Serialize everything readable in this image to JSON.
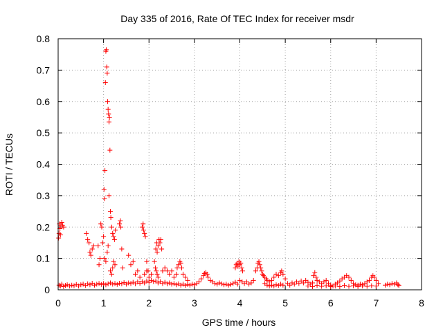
{
  "chart_data": {
    "type": "scatter",
    "title": "Day 335 of 2016, Rate Of TEC Index for receiver msdr",
    "xlabel": "GPS time / hours",
    "ylabel": "ROTI / TECUs",
    "xlim": [
      0,
      8
    ],
    "ylim": [
      0,
      0.8
    ],
    "x_ticks": [
      "0",
      "1",
      "2",
      "3",
      "4",
      "5",
      "6",
      "7",
      "8"
    ],
    "y_ticks": [
      "0",
      "0.1",
      "0.2",
      "0.3",
      "0.4",
      "0.5",
      "0.6",
      "0.7",
      "0.8"
    ],
    "grid": true,
    "marker": "+",
    "color": "#ff0000",
    "series": [
      {
        "name": "ROTI",
        "points": [
          [
            0.02,
            0.015
          ],
          [
            0.05,
            0.012
          ],
          [
            0.08,
            0.018
          ],
          [
            0.12,
            0.01
          ],
          [
            0.16,
            0.014
          ],
          [
            0.2,
            0.016
          ],
          [
            0.25,
            0.012
          ],
          [
            0.3,
            0.015
          ],
          [
            0.35,
            0.013
          ],
          [
            0.4,
            0.017
          ],
          [
            0.45,
            0.012
          ],
          [
            0.5,
            0.016
          ],
          [
            0.55,
            0.018
          ],
          [
            0.6,
            0.014
          ],
          [
            0.65,
            0.019
          ],
          [
            0.7,
            0.016
          ],
          [
            0.75,
            0.021
          ],
          [
            0.8,
            0.015
          ],
          [
            0.85,
            0.018
          ],
          [
            0.9,
            0.02
          ],
          [
            0.95,
            0.017
          ],
          [
            0.01,
            0.165
          ],
          [
            0.02,
            0.18
          ],
          [
            0.03,
            0.21
          ],
          [
            0.04,
            0.195
          ],
          [
            0.05,
            0.175
          ],
          [
            0.06,
            0.205
          ],
          [
            0.08,
            0.215
          ],
          [
            0.1,
            0.205
          ],
          [
            0.12,
            0.2
          ],
          [
            0.62,
            0.18
          ],
          [
            0.65,
            0.16
          ],
          [
            0.68,
            0.15
          ],
          [
            0.7,
            0.12
          ],
          [
            0.72,
            0.11
          ],
          [
            0.75,
            0.13
          ],
          [
            0.78,
            0.14
          ],
          [
            0.88,
            0.14
          ],
          [
            0.9,
            0.08
          ],
          [
            0.92,
            0.1
          ],
          [
            0.94,
            0.21
          ],
          [
            0.96,
            0.2
          ],
          [
            0.98,
            0.15
          ],
          [
            1.0,
            0.17
          ],
          [
            1.01,
            0.32
          ],
          [
            1.02,
            0.29
          ],
          [
            1.03,
            0.38
          ],
          [
            1.04,
            0.66
          ],
          [
            1.05,
            0.76
          ],
          [
            1.06,
            0.765
          ],
          [
            1.07,
            0.71
          ],
          [
            1.08,
            0.69
          ],
          [
            1.09,
            0.6
          ],
          [
            1.1,
            0.575
          ],
          [
            1.11,
            0.56
          ],
          [
            1.12,
            0.535
          ],
          [
            1.13,
            0.55
          ],
          [
            1.14,
            0.445
          ],
          [
            1.12,
            0.3
          ],
          [
            1.15,
            0.25
          ],
          [
            1.16,
            0.23
          ],
          [
            1.18,
            0.2
          ],
          [
            1.2,
            0.18
          ],
          [
            1.22,
            0.17
          ],
          [
            1.24,
            0.16
          ],
          [
            1.26,
            0.19
          ],
          [
            1.15,
            0.06
          ],
          [
            1.18,
            0.05
          ],
          [
            1.2,
            0.07
          ],
          [
            1.22,
            0.09
          ],
          [
            1.25,
            0.08
          ],
          [
            1.02,
            0.1
          ],
          [
            1.05,
            0.09
          ],
          [
            1.08,
            0.12
          ],
          [
            1.1,
            0.14
          ],
          [
            1.35,
            0.21
          ],
          [
            1.37,
            0.22
          ],
          [
            1.38,
            0.2
          ],
          [
            1.4,
            0.13
          ],
          [
            1.42,
            0.07
          ],
          [
            1.55,
            0.11
          ],
          [
            1.6,
            0.08
          ],
          [
            1.65,
            0.09
          ],
          [
            1.85,
            0.2
          ],
          [
            1.87,
            0.21
          ],
          [
            1.88,
            0.19
          ],
          [
            1.9,
            0.18
          ],
          [
            1.92,
            0.17
          ],
          [
            1.95,
            0.09
          ],
          [
            1.98,
            0.06
          ],
          [
            2.15,
            0.13
          ],
          [
            2.17,
            0.15
          ],
          [
            2.18,
            0.12
          ],
          [
            2.2,
            0.14
          ],
          [
            2.22,
            0.16
          ],
          [
            2.24,
            0.15
          ],
          [
            2.26,
            0.16
          ],
          [
            2.28,
            0.13
          ],
          [
            2.12,
            0.09
          ],
          [
            2.14,
            0.07
          ],
          [
            2.16,
            0.06
          ],
          [
            2.18,
            0.05
          ],
          [
            2.2,
            0.04
          ],
          [
            2.3,
            0.06
          ],
          [
            2.35,
            0.07
          ],
          [
            2.4,
            0.06
          ],
          [
            2.45,
            0.05
          ],
          [
            2.5,
            0.06
          ],
          [
            2.55,
            0.04
          ],
          [
            2.6,
            0.05
          ],
          [
            2.62,
            0.07
          ],
          [
            2.65,
            0.08
          ],
          [
            2.68,
            0.09
          ],
          [
            2.7,
            0.085
          ],
          [
            2.72,
            0.07
          ],
          [
            2.75,
            0.05
          ],
          [
            2.8,
            0.04
          ],
          [
            2.85,
            0.03
          ],
          [
            1.0,
            0.02
          ],
          [
            1.05,
            0.016
          ],
          [
            1.1,
            0.019
          ],
          [
            1.15,
            0.022
          ],
          [
            1.2,
            0.018
          ],
          [
            1.25,
            0.02
          ],
          [
            1.3,
            0.017
          ],
          [
            1.35,
            0.021
          ],
          [
            1.4,
            0.019
          ],
          [
            1.45,
            0.023
          ],
          [
            1.5,
            0.018
          ],
          [
            1.55,
            0.022
          ],
          [
            1.6,
            0.02
          ],
          [
            1.65,
            0.024
          ],
          [
            1.7,
            0.019
          ],
          [
            1.75,
            0.025
          ],
          [
            1.8,
            0.021
          ],
          [
            1.85,
            0.026
          ],
          [
            1.9,
            0.022
          ],
          [
            1.95,
            0.028
          ],
          [
            2.0,
            0.024
          ],
          [
            2.05,
            0.03
          ],
          [
            2.1,
            0.026
          ],
          [
            2.15,
            0.028
          ],
          [
            2.2,
            0.022
          ],
          [
            2.25,
            0.026
          ],
          [
            2.3,
            0.02
          ],
          [
            2.35,
            0.024
          ],
          [
            2.4,
            0.019
          ],
          [
            2.45,
            0.022
          ],
          [
            2.5,
            0.018
          ],
          [
            2.55,
            0.02
          ],
          [
            2.6,
            0.016
          ],
          [
            2.65,
            0.019
          ],
          [
            2.7,
            0.015
          ],
          [
            2.75,
            0.018
          ],
          [
            2.8,
            0.014
          ],
          [
            2.85,
            0.017
          ],
          [
            2.9,
            0.015
          ],
          [
            2.95,
            0.018
          ],
          [
            1.7,
            0.05
          ],
          [
            1.75,
            0.06
          ],
          [
            1.8,
            0.04
          ],
          [
            1.9,
            0.05
          ],
          [
            1.95,
            0.06
          ],
          [
            2.0,
            0.04
          ],
          [
            2.05,
            0.05
          ],
          [
            3.0,
            0.016
          ],
          [
            3.05,
            0.02
          ],
          [
            3.1,
            0.025
          ],
          [
            3.15,
            0.035
          ],
          [
            3.2,
            0.045
          ],
          [
            3.22,
            0.052
          ],
          [
            3.25,
            0.055
          ],
          [
            3.28,
            0.05
          ],
          [
            3.3,
            0.04
          ],
          [
            3.35,
            0.03
          ],
          [
            3.4,
            0.025
          ],
          [
            3.45,
            0.02
          ],
          [
            3.5,
            0.018
          ],
          [
            3.55,
            0.022
          ],
          [
            3.6,
            0.019
          ],
          [
            3.65,
            0.016
          ],
          [
            3.7,
            0.018
          ],
          [
            3.75,
            0.015
          ],
          [
            3.8,
            0.017
          ],
          [
            3.85,
            0.02
          ],
          [
            3.9,
            0.024
          ],
          [
            3.95,
            0.018
          ],
          [
            3.9,
            0.07
          ],
          [
            3.92,
            0.08
          ],
          [
            3.94,
            0.085
          ],
          [
            3.96,
            0.075
          ],
          [
            3.98,
            0.09
          ],
          [
            4.0,
            0.08
          ],
          [
            4.02,
            0.085
          ],
          [
            4.04,
            0.07
          ],
          [
            4.06,
            0.06
          ],
          [
            4.0,
            0.03
          ],
          [
            4.05,
            0.025
          ],
          [
            4.1,
            0.02
          ],
          [
            4.15,
            0.025
          ],
          [
            4.2,
            0.018
          ],
          [
            4.25,
            0.022
          ],
          [
            4.3,
            0.03
          ],
          [
            4.35,
            0.06
          ],
          [
            4.38,
            0.07
          ],
          [
            4.4,
            0.085
          ],
          [
            4.42,
            0.09
          ],
          [
            4.44,
            0.08
          ],
          [
            4.46,
            0.07
          ],
          [
            4.48,
            0.06
          ],
          [
            4.5,
            0.05
          ],
          [
            4.52,
            0.045
          ],
          [
            4.55,
            0.04
          ],
          [
            4.58,
            0.035
          ],
          [
            4.6,
            0.03
          ],
          [
            4.65,
            0.025
          ],
          [
            4.7,
            0.03
          ],
          [
            4.75,
            0.04
          ],
          [
            4.8,
            0.05
          ],
          [
            4.85,
            0.045
          ],
          [
            4.9,
            0.055
          ],
          [
            4.92,
            0.06
          ],
          [
            4.95,
            0.05
          ],
          [
            5.0,
            0.035
          ],
          [
            4.55,
            0.02
          ],
          [
            4.6,
            0.015
          ],
          [
            4.65,
            0.012
          ],
          [
            4.7,
            0.015
          ],
          [
            4.75,
            0.012
          ],
          [
            4.8,
            0.016
          ],
          [
            4.85,
            0.014
          ],
          [
            4.9,
            0.018
          ],
          [
            4.95,
            0.015
          ],
          [
            5.05,
            0.02
          ],
          [
            5.1,
            0.015
          ],
          [
            5.15,
            0.022
          ],
          [
            5.2,
            0.018
          ],
          [
            5.25,
            0.025
          ],
          [
            5.3,
            0.02
          ],
          [
            5.35,
            0.028
          ],
          [
            5.4,
            0.022
          ],
          [
            5.45,
            0.03
          ],
          [
            5.5,
            0.024
          ],
          [
            5.55,
            0.018
          ],
          [
            5.6,
            0.022
          ],
          [
            5.62,
            0.045
          ],
          [
            5.65,
            0.055
          ],
          [
            5.68,
            0.04
          ],
          [
            5.7,
            0.03
          ],
          [
            5.75,
            0.025
          ],
          [
            5.8,
            0.02
          ],
          [
            5.85,
            0.025
          ],
          [
            5.9,
            0.03
          ],
          [
            5.95,
            0.02
          ],
          [
            6.0,
            0.015
          ],
          [
            6.05,
            0.012
          ],
          [
            6.1,
            0.018
          ],
          [
            6.15,
            0.022
          ],
          [
            6.2,
            0.028
          ],
          [
            6.25,
            0.035
          ],
          [
            6.3,
            0.04
          ],
          [
            6.35,
            0.045
          ],
          [
            6.4,
            0.04
          ],
          [
            6.45,
            0.03
          ],
          [
            6.5,
            0.02
          ],
          [
            6.55,
            0.016
          ],
          [
            6.6,
            0.015
          ],
          [
            6.65,
            0.018
          ],
          [
            6.7,
            0.016
          ],
          [
            6.75,
            0.02
          ],
          [
            6.8,
            0.025
          ],
          [
            6.85,
            0.03
          ],
          [
            6.9,
            0.04
          ],
          [
            6.93,
            0.045
          ],
          [
            6.96,
            0.04
          ],
          [
            7.0,
            0.03
          ],
          [
            7.05,
            0.02
          ],
          [
            5.5,
            0.012
          ],
          [
            5.6,
            0.01
          ],
          [
            5.7,
            0.014
          ],
          [
            5.8,
            0.011
          ],
          [
            5.9,
            0.013
          ],
          [
            6.0,
            0.01
          ],
          [
            6.1,
            0.012
          ],
          [
            6.2,
            0.01
          ],
          [
            6.3,
            0.014
          ],
          [
            6.4,
            0.011
          ],
          [
            6.5,
            0.013
          ],
          [
            6.6,
            0.01
          ],
          [
            6.7,
            0.012
          ],
          [
            6.8,
            0.011
          ],
          [
            6.9,
            0.013
          ],
          [
            7.0,
            0.012
          ],
          [
            7.2,
            0.015
          ],
          [
            7.25,
            0.018
          ],
          [
            7.3,
            0.016
          ],
          [
            7.35,
            0.02
          ],
          [
            7.4,
            0.018
          ],
          [
            7.45,
            0.022
          ],
          [
            7.48,
            0.016
          ],
          [
            7.5,
            0.014
          ]
        ]
      }
    ]
  }
}
